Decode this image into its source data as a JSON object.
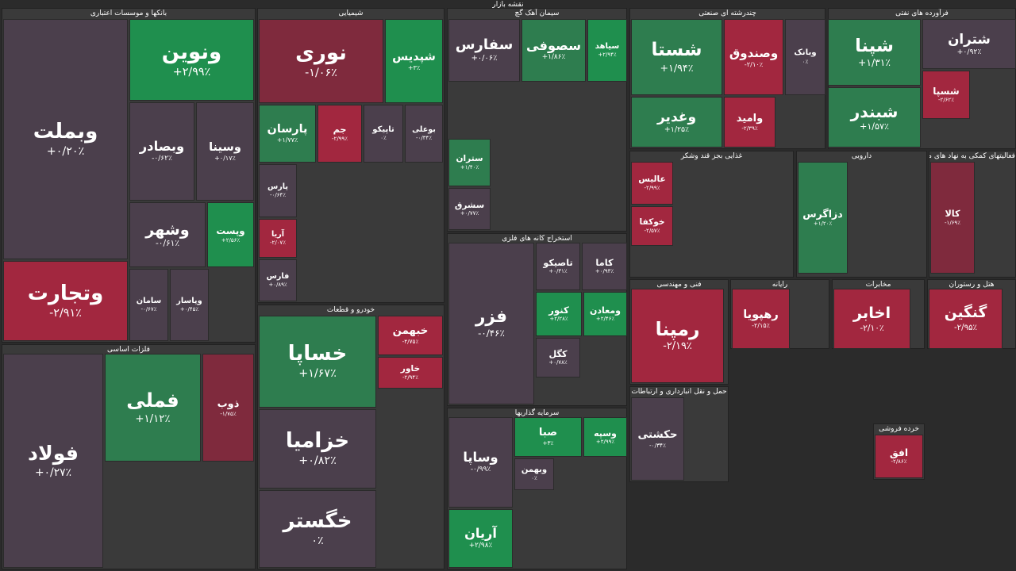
{
  "title": "نقشه بازار",
  "sectors": [
    {
      "name": "بانکها و موسسات اعتباری",
      "tiles": [
        {
          "symbol": "ونوین",
          "change": "+۲/۹۹٪",
          "color": "#1f8f4e"
        },
        {
          "symbol": "وبملت",
          "change": "+۰/۲۰٪",
          "color": "#4b3f4c"
        },
        {
          "symbol": "وتجارت",
          "change": "-۲/۹۱٪",
          "color": "#a2273f"
        },
        {
          "symbol": "وبصادر",
          "change": "-۰/۶۲٪",
          "color": "#4b3f4c"
        },
        {
          "symbol": "وسینا",
          "change": "+۰/۱۷٪",
          "color": "#4b3f4c"
        },
        {
          "symbol": "وشهر",
          "change": "-۰/۶۱٪",
          "color": "#4b3f4c"
        },
        {
          "symbol": "وپست",
          "change": "+۲/۵۶٪",
          "color": "#1f8f4e"
        },
        {
          "symbol": "سامان",
          "change": "-۰/۶۷٪",
          "color": "#4b3f4c"
        },
        {
          "symbol": "وپاسار",
          "change": "+۰/۴۵٪",
          "color": "#4b3f4c"
        }
      ]
    },
    {
      "name": "شیمیایی",
      "tiles": [
        {
          "symbol": "نوری",
          "change": "-۱/۰۶٪",
          "color": "#7f2a3d"
        },
        {
          "symbol": "شپدیس",
          "change": "+۳٪",
          "color": "#1f8f4e"
        },
        {
          "symbol": "پارسان",
          "change": "+۱/۷۷٪",
          "color": "#2e7d4f"
        },
        {
          "symbol": "جم",
          "change": "-۲/۹۹٪",
          "color": "#a2273f"
        },
        {
          "symbol": "تاپیکو",
          "change": "۰٪",
          "color": "#4b3f4c"
        },
        {
          "symbol": "بوعلی",
          "change": "-۰/۳۴٪",
          "color": "#4b3f4c"
        },
        {
          "symbol": "پارس",
          "change": "-۰/۶۴٪",
          "color": "#4b3f4c"
        },
        {
          "symbol": "آریا",
          "change": "-۲/۰۷٪",
          "color": "#a2273f"
        },
        {
          "symbol": "فارس",
          "change": "+۰/۸۹٪",
          "color": "#4b3f4c"
        }
      ]
    },
    {
      "name": "خودرو و قطعات",
      "tiles": [
        {
          "symbol": "خساپا",
          "change": "+۱/۶۷٪",
          "color": "#2e7d4f"
        },
        {
          "symbol": "خزامیا",
          "change": "+۰/۸۲٪",
          "color": "#4b3f4c"
        },
        {
          "symbol": "خگستر",
          "change": "۰٪",
          "color": "#4b3f4c"
        },
        {
          "symbol": "خبهمن",
          "change": "-۴/۷۵٪",
          "color": "#a2273f"
        },
        {
          "symbol": "خاور",
          "change": "-۲/۹۴٪",
          "color": "#a2273f"
        }
      ]
    },
    {
      "name": "فلزات اساسی",
      "tiles": [
        {
          "symbol": "فولاد",
          "change": "+۰/۲۷٪",
          "color": "#4b3f4c"
        },
        {
          "symbol": "فملی",
          "change": "+۱/۱۲٪",
          "color": "#2e7d4f"
        },
        {
          "symbol": "ذوب",
          "change": "-۱/۷۵٪",
          "color": "#7f2a3d"
        }
      ]
    },
    {
      "name": "سیمان آهک گچ",
      "tiles": [
        {
          "symbol": "سفارس",
          "change": "+۰/۰۶٪",
          "color": "#4b3f4c"
        },
        {
          "symbol": "سصوفی",
          "change": "+۱/۸۶٪",
          "color": "#2e7d4f"
        },
        {
          "symbol": "سیاهد",
          "change": "+۲/۹۴٪",
          "color": "#1f8f4e"
        },
        {
          "symbol": "ستران",
          "change": "+۱/۴۰٪",
          "color": "#2e7d4f"
        },
        {
          "symbol": "سشرق",
          "change": "+۰/۷۷٪",
          "color": "#4b3f4c"
        }
      ]
    },
    {
      "name": "استخراج کانه های فلزی",
      "tiles": [
        {
          "symbol": "فزر",
          "change": "-۰/۴۶٪",
          "color": "#4b3f4c"
        },
        {
          "symbol": "تاصیکو",
          "change": "+۰/۳۱٪",
          "color": "#4b3f4c"
        },
        {
          "symbol": "کاما",
          "change": "+۰/۹۳٪",
          "color": "#4b3f4c"
        },
        {
          "symbol": "کنور",
          "change": "+۲/۲۸٪",
          "color": "#1f8f4e"
        },
        {
          "symbol": "ومعادن",
          "change": "+۲/۴۶٪",
          "color": "#1f8f4e"
        },
        {
          "symbol": "کگل",
          "change": "+۰/۷۸٪",
          "color": "#4b3f4c"
        }
      ]
    },
    {
      "name": "سرمایه گذاریها",
      "tiles": [
        {
          "symbol": "صبا",
          "change": "+۳٪",
          "color": "#1f8f4e"
        },
        {
          "symbol": "وسپه",
          "change": "+۲/۹۹٪",
          "color": "#1f8f4e"
        },
        {
          "symbol": "وساپا",
          "change": "-۰/۹۹٪",
          "color": "#4b3f4c"
        },
        {
          "symbol": "وبهمن",
          "change": "۰٪",
          "color": "#4b3f4c"
        },
        {
          "symbol": "آریان",
          "change": "+۲/۹۸٪",
          "color": "#1f8f4e"
        }
      ]
    },
    {
      "name": "چندرشته ای صنعتی",
      "tiles": [
        {
          "symbol": "شستا",
          "change": "+۱/۹۴٪",
          "color": "#2e7d4f"
        },
        {
          "symbol": "وصندوق",
          "change": "-۲/۱۰٪",
          "color": "#a2273f"
        },
        {
          "symbol": "وبانک",
          "change": "۰٪",
          "color": "#4b3f4c"
        },
        {
          "symbol": "وغدیر",
          "change": "+۱/۲۵٪",
          "color": "#2e7d4f"
        },
        {
          "symbol": "وامید",
          "change": "-۲/۳۹٪",
          "color": "#a2273f"
        }
      ]
    },
    {
      "name": "فرآورده های نفتی",
      "tiles": [
        {
          "symbol": "شپنا",
          "change": "+۱/۳۱٪",
          "color": "#2e7d4f"
        },
        {
          "symbol": "شبندر",
          "change": "+۱/۵۷٪",
          "color": "#2e7d4f"
        },
        {
          "symbol": "شتران",
          "change": "+۰/۹۲٪",
          "color": "#4b3f4c"
        },
        {
          "symbol": "شسپا",
          "change": "-۲/۶۲٪",
          "color": "#a2273f"
        }
      ]
    },
    {
      "name": "غذایی بجز قند وشکر",
      "tiles": [
        {
          "symbol": "عالیس",
          "change": "-۲/۹۹٪",
          "color": "#a2273f"
        },
        {
          "symbol": "خوکفا",
          "change": "-۲/۵۷٪",
          "color": "#a2273f"
        }
      ]
    },
    {
      "name": "دارویی",
      "tiles": [
        {
          "symbol": "دزاگرس",
          "change": "+۱/۲۰٪",
          "color": "#2e7d4f"
        }
      ]
    },
    {
      "name": "فعالیتهای کمکی به نهاد های مالی",
      "tiles": [
        {
          "symbol": "کالا",
          "change": "-۱/۶۹٪",
          "color": "#7f2a3d"
        }
      ]
    },
    {
      "name": "فنی و مهندسی",
      "tiles": [
        {
          "symbol": "رمپنا",
          "change": "-۲/۱۹٪",
          "color": "#a2273f"
        }
      ]
    },
    {
      "name": "رایانه",
      "tiles": [
        {
          "symbol": "رهپویا",
          "change": "-۲/۱۵٪",
          "color": "#a2273f"
        }
      ]
    },
    {
      "name": "مخابرات",
      "tiles": [
        {
          "symbol": "اخابر",
          "change": "-۲/۱۰٪",
          "color": "#a2273f"
        }
      ]
    },
    {
      "name": "هتل و رستوران",
      "tiles": [
        {
          "symbol": "گنگین",
          "change": "-۲/۹۵٪",
          "color": "#a2273f"
        }
      ]
    },
    {
      "name": "حمل و نقل انبارداری و ارتباطات",
      "tiles": [
        {
          "symbol": "حکشتی",
          "change": "-۰/۳۴٪",
          "color": "#4b3f4c"
        }
      ]
    },
    {
      "name": "خرده فروشی",
      "tiles": [
        {
          "symbol": "افق",
          "change": "-۲/۸۶٪",
          "color": "#a2273f"
        }
      ]
    }
  ]
}
